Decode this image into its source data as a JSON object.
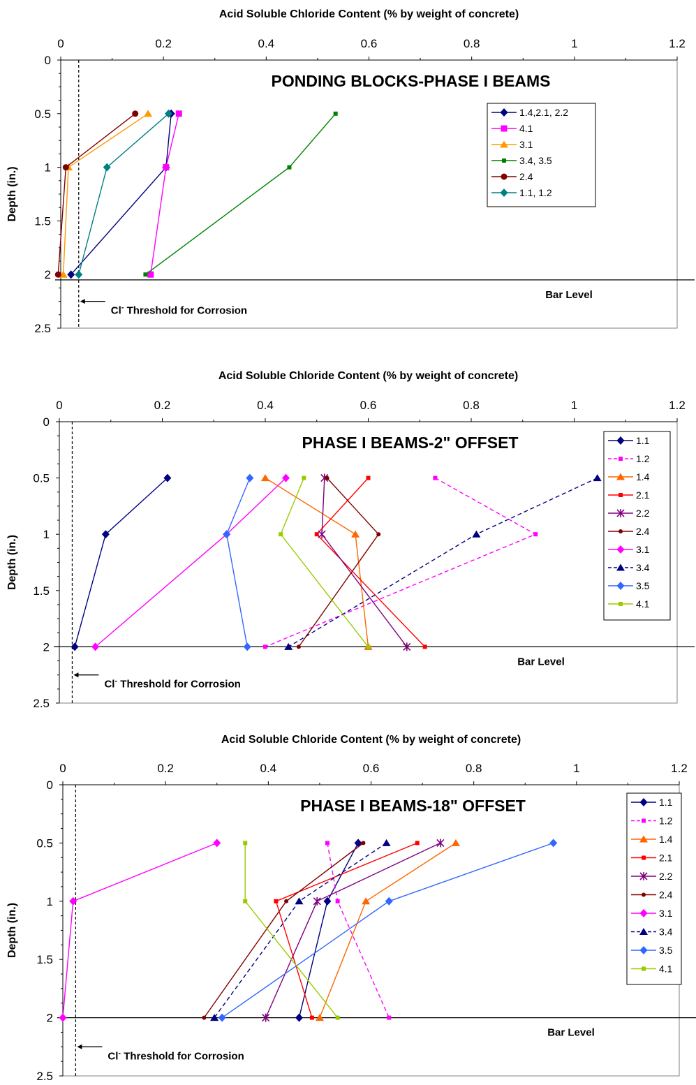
{
  "chart_data": [
    {
      "type": "line",
      "title": "PONDING BLOCKS-PHASE I BEAMS",
      "xlabel": "Acid Soluble Chloride Content (% by weight of concrete)",
      "ylabel": "Depth (in.)",
      "xlim": [
        0,
        1.2
      ],
      "ylim": [
        0,
        2.5
      ],
      "xticks": [
        "0",
        "0.2",
        "0.4",
        "0.6",
        "0.8",
        "1",
        "1.2"
      ],
      "yticks": [
        "0",
        "0.5",
        "1",
        "1.5",
        "2",
        "2.5"
      ],
      "x_axis_position": "top",
      "y_axis_reversed": true,
      "grid": false,
      "legend_position": "top-right",
      "bar_level": {
        "depth": 2.05,
        "label": "Bar Level"
      },
      "threshold": {
        "value": 0.035,
        "label_prefix": "Cl",
        "label_sup": "-",
        "label_rest": " Threshold for Corrosion"
      },
      "series": [
        {
          "name": "1.4,2.1, 2.2",
          "color": "#000080",
          "marker": "diamond",
          "dashed": false,
          "depth": [
            0.5,
            1,
            2
          ],
          "values": [
            0.215,
            0.205,
            0.02
          ]
        },
        {
          "name": "4.1",
          "color": "#ff00ff",
          "marker": "square",
          "dashed": false,
          "depth": [
            0.5,
            1,
            2
          ],
          "values": [
            0.23,
            0.205,
            0.175
          ]
        },
        {
          "name": "3.1",
          "color": "#ff9900",
          "marker": "triangle",
          "dashed": false,
          "depth": [
            0.5,
            1,
            2
          ],
          "values": [
            0.17,
            0.015,
            0.005
          ]
        },
        {
          "name": "3.4, 3.5",
          "color": "#008000",
          "marker": "smallsquare",
          "dashed": false,
          "depth": [
            0.5,
            1,
            2
          ],
          "values": [
            0.535,
            0.445,
            0.165
          ]
        },
        {
          "name": "2.4",
          "color": "#800000",
          "marker": "circle",
          "dashed": false,
          "depth": [
            0.5,
            1,
            2
          ],
          "values": [
            0.145,
            0.01,
            -0.005
          ]
        },
        {
          "name": "1.1, 1.2",
          "color": "#008080",
          "marker": "diamond",
          "dashed": false,
          "depth": [
            0.5,
            1,
            2
          ],
          "values": [
            0.21,
            0.09,
            0.035
          ]
        }
      ]
    },
    {
      "type": "line",
      "title": "PHASE I BEAMS-2\" OFFSET",
      "xlabel": "Acid Soluble Chloride Content (% by weight of concrete)",
      "ylabel": "Depth (in.)",
      "xlim": [
        0,
        1.2
      ],
      "ylim": [
        0,
        2.5
      ],
      "xticks": [
        "0",
        "0.2",
        "0.4",
        "0.6",
        "0.8",
        "1",
        "1.2"
      ],
      "yticks": [
        "0",
        "0.5",
        "1",
        "1.5",
        "2",
        "2.5"
      ],
      "x_axis_position": "top",
      "y_axis_reversed": true,
      "grid": false,
      "legend_position": "top-right",
      "bar_level": {
        "depth": 2.0,
        "label": "Bar Level"
      },
      "threshold": {
        "value": 0.025,
        "label_prefix": "Cl",
        "label_sup": "-",
        "label_rest": " Threshold for Corrosion"
      },
      "series": [
        {
          "name": "1.1",
          "color": "#000080",
          "marker": "diamond",
          "dashed": false,
          "depth": [
            0.5,
            1,
            2
          ],
          "values": [
            0.21,
            0.09,
            0.03
          ]
        },
        {
          "name": "1.2",
          "color": "#ff00ff",
          "marker": "smallsquare",
          "dashed": true,
          "depth": [
            0.5,
            1,
            2
          ],
          "values": [
            0.73,
            0.925,
            0.4
          ]
        },
        {
          "name": "1.4",
          "color": "#ff6600",
          "marker": "triangle",
          "dashed": false,
          "depth": [
            0.5,
            1,
            2
          ],
          "values": [
            0.4,
            0.575,
            0.6
          ]
        },
        {
          "name": "2.1",
          "color": "#ff0000",
          "marker": "smallsquare",
          "dashed": false,
          "depth": [
            0.5,
            1,
            2
          ],
          "values": [
            0.6,
            0.5,
            0.71
          ]
        },
        {
          "name": "2.2",
          "color": "#800080",
          "marker": "asterisk",
          "dashed": false,
          "depth": [
            0.5,
            1,
            2
          ],
          "values": [
            0.515,
            0.51,
            0.675
          ]
        },
        {
          "name": "2.4",
          "color": "#800000",
          "marker": "dot",
          "dashed": false,
          "depth": [
            0.5,
            1,
            2
          ],
          "values": [
            0.52,
            0.62,
            0.465
          ]
        },
        {
          "name": "3.1",
          "color": "#ff00ff",
          "marker": "diamond",
          "dashed": false,
          "depth": [
            0.5,
            1,
            2
          ],
          "values": [
            0.44,
            0.325,
            0.07
          ]
        },
        {
          "name": "3.4",
          "color": "#000080",
          "marker": "triangle",
          "dashed": true,
          "depth": [
            0.5,
            1,
            2
          ],
          "values": [
            1.045,
            0.81,
            0.445
          ]
        },
        {
          "name": "3.5",
          "color": "#3366ff",
          "marker": "diamond",
          "dashed": false,
          "depth": [
            0.5,
            1,
            2
          ],
          "values": [
            0.37,
            0.325,
            0.365
          ]
        },
        {
          "name": "4.1",
          "color": "#99cc00",
          "marker": "smallsquare",
          "dashed": false,
          "depth": [
            0.5,
            1,
            2
          ],
          "values": [
            0.475,
            0.43,
            0.6
          ]
        }
      ]
    },
    {
      "type": "line",
      "title": "PHASE I BEAMS-18\" OFFSET",
      "xlabel": "Acid Soluble Chloride Content (% by weight of concrete)",
      "ylabel": "Depth (in.)",
      "xlim": [
        0,
        1.2
      ],
      "ylim": [
        0,
        2.5
      ],
      "xticks": [
        "0",
        "0.2",
        "0.4",
        "0.6",
        "0.8",
        "1",
        "1.2"
      ],
      "yticks": [
        "0",
        "0.5",
        "1",
        "1.5",
        "2",
        "2.5"
      ],
      "x_axis_position": "top",
      "y_axis_reversed": true,
      "grid": false,
      "legend_position": "top-right",
      "bar_level": {
        "depth": 2.0,
        "label": "Bar Level"
      },
      "threshold": {
        "value": 0.025,
        "label_prefix": "Cl",
        "label_sup": "-",
        "label_rest": " Threshold for Corrosion"
      },
      "series": [
        {
          "name": "1.1",
          "color": "#000080",
          "marker": "diamond",
          "dashed": false,
          "depth": [
            0.5,
            1,
            2
          ],
          "values": [
            0.575,
            0.515,
            0.46
          ]
        },
        {
          "name": "1.2",
          "color": "#ff00ff",
          "marker": "smallsquare",
          "dashed": true,
          "depth": [
            0.5,
            1,
            2
          ],
          "values": [
            0.515,
            0.535,
            0.635
          ]
        },
        {
          "name": "1.4",
          "color": "#ff6600",
          "marker": "triangle",
          "dashed": false,
          "depth": [
            0.5,
            1,
            2
          ],
          "values": [
            0.765,
            0.59,
            0.5
          ]
        },
        {
          "name": "2.1",
          "color": "#ff0000",
          "marker": "smallsquare",
          "dashed": false,
          "depth": [
            0.5,
            1,
            2
          ],
          "values": [
            0.69,
            0.415,
            0.485
          ]
        },
        {
          "name": "2.2",
          "color": "#800080",
          "marker": "asterisk",
          "dashed": false,
          "depth": [
            0.5,
            1,
            2
          ],
          "values": [
            0.735,
            0.495,
            0.395
          ]
        },
        {
          "name": "2.4",
          "color": "#800000",
          "marker": "dot",
          "dashed": false,
          "depth": [
            0.5,
            1,
            2
          ],
          "values": [
            0.585,
            0.435,
            0.275
          ]
        },
        {
          "name": "3.1",
          "color": "#ff00ff",
          "marker": "diamond",
          "dashed": false,
          "depth": [
            0.5,
            1,
            2
          ],
          "values": [
            0.3,
            0.02,
            0.0
          ]
        },
        {
          "name": "3.4",
          "color": "#000080",
          "marker": "triangle",
          "dashed": true,
          "depth": [
            0.5,
            1,
            2
          ],
          "values": [
            0.63,
            0.46,
            0.295
          ]
        },
        {
          "name": "3.5",
          "color": "#3366ff",
          "marker": "diamond",
          "dashed": false,
          "depth": [
            0.5,
            1,
            2
          ],
          "values": [
            0.955,
            0.635,
            0.31
          ]
        },
        {
          "name": "4.1",
          "color": "#99cc00",
          "marker": "smallsquare",
          "dashed": false,
          "depth": [
            0.5,
            1,
            2
          ],
          "values": [
            0.355,
            0.355,
            0.535
          ]
        }
      ]
    }
  ]
}
